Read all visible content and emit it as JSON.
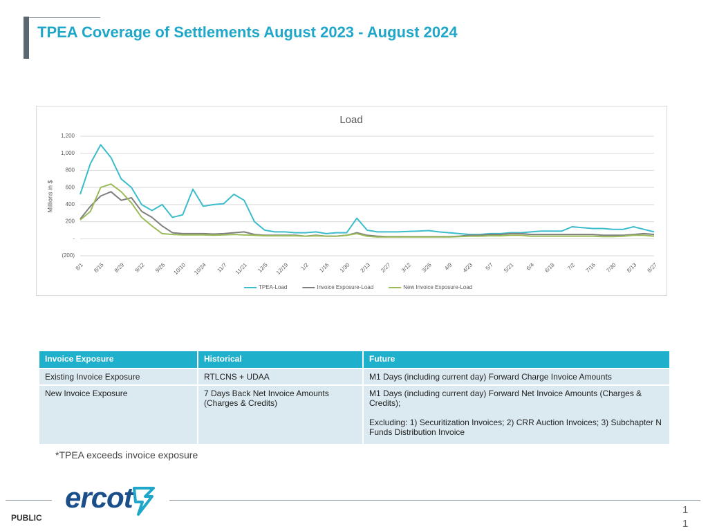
{
  "title": "TPEA Coverage of Settlements August 2023 - August 2024",
  "chart_data": {
    "type": "line",
    "title": "Load",
    "y_label": "Millions in $",
    "categories": [
      "8/1",
      null,
      "8/15",
      null,
      "8/29",
      null,
      "9/12",
      null,
      "9/26",
      null,
      "10/10",
      null,
      "10/24",
      null,
      "11/7",
      null,
      "11/21",
      null,
      "12/5",
      null,
      "12/19",
      null,
      "1/2",
      null,
      "1/16",
      null,
      "1/30",
      null,
      "2/13",
      null,
      "2/27",
      null,
      "3/12",
      null,
      "3/26",
      null,
      "4/9",
      null,
      "4/23",
      null,
      "5/7",
      null,
      "5/21",
      null,
      "6/4",
      null,
      "6/18",
      null,
      "7/2",
      null,
      "7/16",
      null,
      "7/30",
      null,
      "8/13",
      null,
      "8/27"
    ],
    "series": [
      {
        "name": "TPEA-Load",
        "color": "#3bbccc",
        "values": [
          520,
          880,
          1100,
          950,
          700,
          600,
          400,
          330,
          400,
          250,
          280,
          580,
          380,
          400,
          410,
          520,
          450,
          200,
          100,
          80,
          80,
          70,
          70,
          80,
          60,
          70,
          70,
          240,
          100,
          80,
          80,
          80,
          85,
          90,
          95,
          80,
          70,
          60,
          50,
          50,
          60,
          60,
          70,
          70,
          80,
          90,
          90,
          90,
          140,
          130,
          120,
          120,
          110,
          110,
          140,
          110,
          80
        ]
      },
      {
        "name": "Invoice Exposure-Load",
        "color": "#7f7f7f",
        "values": [
          230,
          380,
          500,
          550,
          450,
          480,
          320,
          250,
          150,
          70,
          60,
          60,
          60,
          55,
          60,
          70,
          80,
          50,
          40,
          40,
          40,
          40,
          30,
          40,
          30,
          30,
          40,
          70,
          40,
          30,
          25,
          25,
          25,
          25,
          25,
          25,
          25,
          30,
          40,
          40,
          50,
          50,
          60,
          60,
          50,
          50,
          50,
          50,
          50,
          50,
          50,
          40,
          40,
          40,
          50,
          60,
          50
        ]
      },
      {
        "name": "New Invoice Exposure-Load",
        "color": "#9bbb59",
        "values": [
          220,
          320,
          600,
          640,
          550,
          420,
          250,
          150,
          60,
          50,
          45,
          45,
          45,
          40,
          45,
          50,
          45,
          40,
          35,
          35,
          35,
          35,
          30,
          35,
          30,
          30,
          40,
          60,
          30,
          20,
          20,
          20,
          20,
          20,
          20,
          20,
          20,
          25,
          30,
          30,
          35,
          35,
          40,
          40,
          30,
          30,
          30,
          30,
          30,
          30,
          30,
          25,
          25,
          30,
          40,
          40,
          30
        ]
      }
    ],
    "ylim": [
      -200,
      1200
    ],
    "yticks": [
      {
        "value": -200,
        "label": "(200)"
      },
      {
        "value": 0,
        "label": "-"
      },
      200,
      400,
      600,
      800,
      {
        "value": 1000,
        "label": "1,000"
      },
      {
        "value": 1200,
        "label": "1,200"
      }
    ],
    "grid": true,
    "legend": "bottom"
  },
  "table": {
    "header": [
      "Invoice Exposure",
      "Historical",
      "Future"
    ],
    "rows": [
      [
        "Existing Invoice Exposure",
        "RTLCNS + UDAA",
        "M1 Days (including current day)  Forward Charge Invoice Amounts"
      ],
      [
        "New Invoice Exposure",
        "7 Days Back Net Invoice Amounts (Charges & Credits)",
        [
          "M1 Days (including current day)  Forward Net Invoice Amounts (Charges & Credits);",
          "Excluding: 1) Securitization Invoices; 2) CRR Auction Invoices; 3) Subchapter N Funds Distribution Invoice"
        ]
      ]
    ]
  },
  "note": "*TPEA exceeds invoice exposure",
  "footer": {
    "logo": "ercot",
    "classification": "PUBLIC",
    "page_number": "11"
  }
}
